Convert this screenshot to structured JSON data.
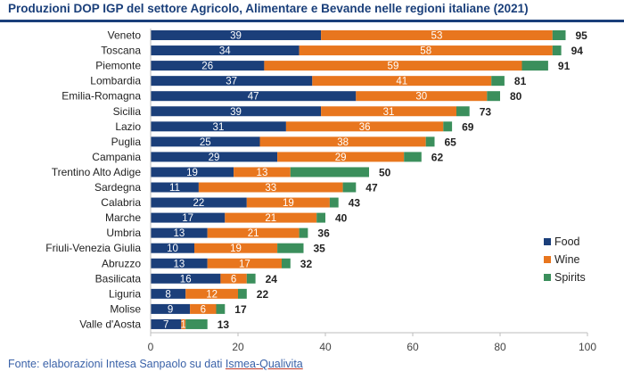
{
  "title": "Produzioni DOP IGP del settore Agricolo, Alimentare e Bevande nelle regioni italiane (2021)",
  "source": {
    "prefix": "Fonte: elaborazioni Intesa Sanpaolo su dati ",
    "link": "Ismea-Qualivita"
  },
  "colors": {
    "food": "#1b3f7a",
    "wine": "#e8761e",
    "spirits": "#3b8f5c",
    "title": "#1a3f7a"
  },
  "chart_data": {
    "type": "bar",
    "orientation": "horizontal",
    "stacked": true,
    "title": "Produzioni DOP IGP del settore Agricolo, Alimentare e Bevande nelle regioni italiane (2021)",
    "xlim": [
      0,
      100
    ],
    "x_ticks": [
      0,
      20,
      40,
      60,
      80,
      100
    ],
    "grid": false,
    "legend_position": "right",
    "categories": [
      "Veneto",
      "Toscana",
      "Piemonte",
      "Lombardia",
      "Emilia-Romagna",
      "Sicilia",
      "Lazio",
      "Puglia",
      "Campania",
      "Trentino Alto Adige",
      "Sardegna",
      "Calabria",
      "Marche",
      "Umbria",
      "Friuli-Venezia Giulia",
      "Abruzzo",
      "Basilicata",
      "Liguria",
      "Molise",
      "Valle d'Aosta"
    ],
    "series": [
      {
        "name": "Food",
        "values": [
          39,
          34,
          26,
          37,
          47,
          39,
          31,
          25,
          29,
          19,
          11,
          22,
          17,
          13,
          10,
          13,
          16,
          8,
          9,
          7
        ]
      },
      {
        "name": "Wine",
        "values": [
          53,
          58,
          59,
          41,
          30,
          31,
          36,
          38,
          29,
          13,
          33,
          19,
          21,
          21,
          19,
          17,
          6,
          12,
          6,
          1
        ]
      },
      {
        "name": "Spirits",
        "values": [
          3,
          2,
          6,
          3,
          3,
          3,
          2,
          2,
          4,
          18,
          3,
          2,
          2,
          2,
          6,
          2,
          2,
          2,
          2,
          5
        ]
      }
    ],
    "totals": [
      95,
      94,
      91,
      81,
      80,
      73,
      69,
      65,
      62,
      50,
      47,
      43,
      40,
      36,
      35,
      32,
      24,
      22,
      17,
      13
    ],
    "segment_labels": {
      "Food": [
        "39",
        "34",
        "26",
        "37",
        "47",
        "39",
        "31",
        "25",
        "29",
        "19",
        "11",
        "22",
        "17",
        "13",
        "10",
        "13",
        "16",
        "8",
        "9",
        "7"
      ],
      "Wine": [
        "53",
        "58",
        "59",
        "41",
        "30",
        "31",
        "36",
        "38",
        "29",
        "13",
        "33",
        "19",
        "21",
        "21",
        "19",
        "17",
        "6",
        "12",
        "6",
        "1"
      ]
    }
  }
}
